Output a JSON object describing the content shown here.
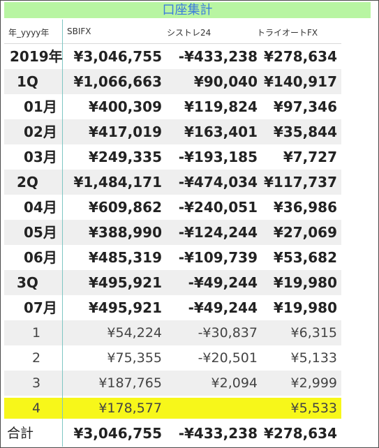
{
  "title": "口座集計",
  "headers": [
    "年_yyyy年",
    "SBIFX",
    "シストレ24",
    "トライオートFX"
  ],
  "rows": [
    {
      "label": "2019年",
      "sbifx": "¥3,046,755",
      "systre": "-¥433,238",
      "triauto": "¥278,634"
    },
    {
      "label": "1Q",
      "sbifx": "¥1,066,663",
      "systre": "¥90,040",
      "triauto": "¥140,917"
    },
    {
      "label": "01月",
      "sbifx": "¥400,309",
      "systre": "¥119,824",
      "triauto": "¥97,346"
    },
    {
      "label": "02月",
      "sbifx": "¥417,019",
      "systre": "¥163,401",
      "triauto": "¥35,844"
    },
    {
      "label": "03月",
      "sbifx": "¥249,335",
      "systre": "-¥193,185",
      "triauto": "¥7,727"
    },
    {
      "label": "2Q",
      "sbifx": "¥1,484,171",
      "systre": "-¥474,034",
      "triauto": "¥117,737"
    },
    {
      "label": "04月",
      "sbifx": "¥609,862",
      "systre": "-¥240,051",
      "triauto": "¥36,986"
    },
    {
      "label": "05月",
      "sbifx": "¥388,990",
      "systre": "-¥124,244",
      "triauto": "¥27,069"
    },
    {
      "label": "06月",
      "sbifx": "¥485,319",
      "systre": "-¥109,739",
      "triauto": "¥53,682"
    },
    {
      "label": "3Q",
      "sbifx": "¥495,921",
      "systre": "-¥49,244",
      "triauto": "¥19,980"
    },
    {
      "label": "07月",
      "sbifx": "¥495,921",
      "systre": "-¥49,244",
      "triauto": "¥19,980"
    },
    {
      "label": "1",
      "sbifx": "¥54,224",
      "systre": "-¥30,837",
      "triauto": "¥6,315"
    },
    {
      "label": "2",
      "sbifx": "¥75,355",
      "systre": "-¥20,501",
      "triauto": "¥5,133"
    },
    {
      "label": "3",
      "sbifx": "¥187,765",
      "systre": "¥2,094",
      "triauto": "¥2,999"
    },
    {
      "label": "4",
      "sbifx": "¥178,577",
      "systre": "",
      "triauto": "¥5,533"
    }
  ],
  "total": {
    "label": "合計",
    "sbifx": "¥3,046,755",
    "systre": "-¥433,238",
    "triauto": "¥278,634"
  },
  "colors": {
    "title_bg": "#b8f5a2",
    "title_text": "#3b7bdc",
    "highlight": "#f7f71a",
    "shaded_row": "#efefef",
    "column_divider": "#7ec6c4"
  }
}
